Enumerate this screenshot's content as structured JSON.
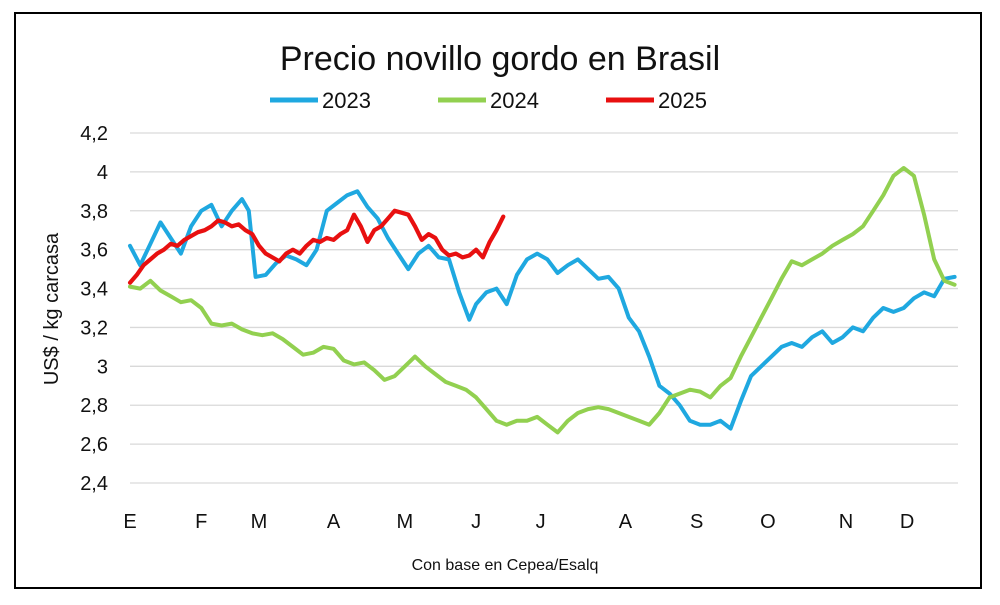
{
  "chart_data": {
    "type": "line",
    "title": "Precio novillo gordo en Brasil",
    "ylabel": "US$ / kg carcasa",
    "footnote": "Con base en Cepea/Esalq",
    "ylim": [
      2.4,
      4.2
    ],
    "yticks": [
      {
        "value": 2.4,
        "label": "2,4"
      },
      {
        "value": 2.6,
        "label": "2,6"
      },
      {
        "value": 2.8,
        "label": "2,8"
      },
      {
        "value": 3.0,
        "label": "3"
      },
      {
        "value": 3.2,
        "label": "3,2"
      },
      {
        "value": 3.4,
        "label": "3,4"
      },
      {
        "value": 3.6,
        "label": "3,6"
      },
      {
        "value": 3.8,
        "label": "3,8"
      },
      {
        "value": 4.0,
        "label": "4"
      },
      {
        "value": 4.2,
        "label": "4,2"
      }
    ],
    "xrange": [
      0,
      12.2
    ],
    "xticks": [
      {
        "pos": 0.0,
        "label": "E"
      },
      {
        "pos": 1.05,
        "label": "F"
      },
      {
        "pos": 1.9,
        "label": "M"
      },
      {
        "pos": 3.0,
        "label": "A"
      },
      {
        "pos": 4.05,
        "label": "M"
      },
      {
        "pos": 5.1,
        "label": "J"
      },
      {
        "pos": 6.05,
        "label": "J"
      },
      {
        "pos": 7.3,
        "label": "A"
      },
      {
        "pos": 8.35,
        "label": "S"
      },
      {
        "pos": 9.4,
        "label": "O"
      },
      {
        "pos": 10.55,
        "label": "N"
      },
      {
        "pos": 11.45,
        "label": "D"
      }
    ],
    "grid": true,
    "legend": "top",
    "series": [
      {
        "name": "2023",
        "color": "#1fa8e0",
        "x": [
          0.0,
          0.15,
          0.3,
          0.45,
          0.6,
          0.75,
          0.9,
          1.05,
          1.2,
          1.35,
          1.5,
          1.65,
          1.75,
          1.85,
          2.0,
          2.15,
          2.3,
          2.45,
          2.6,
          2.75,
          2.9,
          3.05,
          3.2,
          3.35,
          3.5,
          3.65,
          3.8,
          3.95,
          4.1,
          4.25,
          4.4,
          4.55,
          4.7,
          4.85,
          5.0,
          5.1,
          5.25,
          5.4,
          5.55,
          5.7,
          5.85,
          6.0,
          6.15,
          6.3,
          6.45,
          6.6,
          6.75,
          6.9,
          7.05,
          7.2,
          7.35,
          7.5,
          7.65,
          7.8,
          7.95,
          8.1,
          8.25,
          8.4,
          8.55,
          8.7,
          8.85,
          9.0,
          9.15,
          9.3,
          9.45,
          9.6,
          9.75,
          9.9,
          10.05,
          10.2,
          10.35,
          10.5,
          10.65,
          10.8,
          10.95,
          11.1,
          11.25,
          11.4,
          11.55,
          11.7,
          11.85,
          12.0,
          12.15
        ],
        "values": [
          3.62,
          3.52,
          3.63,
          3.74,
          3.66,
          3.58,
          3.72,
          3.8,
          3.83,
          3.72,
          3.8,
          3.86,
          3.8,
          3.46,
          3.47,
          3.53,
          3.57,
          3.55,
          3.52,
          3.6,
          3.8,
          3.84,
          3.88,
          3.9,
          3.82,
          3.76,
          3.66,
          3.58,
          3.5,
          3.58,
          3.62,
          3.56,
          3.55,
          3.38,
          3.24,
          3.32,
          3.38,
          3.4,
          3.32,
          3.47,
          3.55,
          3.58,
          3.55,
          3.48,
          3.52,
          3.55,
          3.5,
          3.45,
          3.46,
          3.4,
          3.25,
          3.18,
          3.05,
          2.9,
          2.86,
          2.8,
          2.72,
          2.7,
          2.7,
          2.72,
          2.68,
          2.82,
          2.95,
          3.0,
          3.05,
          3.1,
          3.12,
          3.1,
          3.15,
          3.18,
          3.12,
          3.15,
          3.2,
          3.18,
          3.25,
          3.3,
          3.28,
          3.3,
          3.35,
          3.38,
          3.36,
          3.45,
          3.46
        ]
      },
      {
        "name": "2024",
        "color": "#92d050",
        "x": [
          0.0,
          0.15,
          0.3,
          0.45,
          0.6,
          0.75,
          0.9,
          1.05,
          1.2,
          1.35,
          1.5,
          1.65,
          1.8,
          1.95,
          2.1,
          2.25,
          2.4,
          2.55,
          2.7,
          2.85,
          3.0,
          3.15,
          3.3,
          3.45,
          3.6,
          3.75,
          3.9,
          4.05,
          4.2,
          4.35,
          4.5,
          4.65,
          4.8,
          4.95,
          5.1,
          5.25,
          5.4,
          5.55,
          5.7,
          5.85,
          6.0,
          6.15,
          6.3,
          6.45,
          6.6,
          6.75,
          6.9,
          7.05,
          7.2,
          7.35,
          7.5,
          7.65,
          7.8,
          7.95,
          8.1,
          8.25,
          8.4,
          8.55,
          8.7,
          8.85,
          9.0,
          9.15,
          9.3,
          9.45,
          9.6,
          9.75,
          9.9,
          10.05,
          10.2,
          10.35,
          10.5,
          10.65,
          10.8,
          10.95,
          11.1,
          11.25,
          11.4,
          11.55,
          11.7,
          11.85,
          12.0,
          12.15
        ],
        "values": [
          3.41,
          3.4,
          3.44,
          3.39,
          3.36,
          3.33,
          3.34,
          3.3,
          3.22,
          3.21,
          3.22,
          3.19,
          3.17,
          3.16,
          3.17,
          3.14,
          3.1,
          3.06,
          3.07,
          3.1,
          3.09,
          3.03,
          3.01,
          3.02,
          2.98,
          2.93,
          2.95,
          3.0,
          3.05,
          3.0,
          2.96,
          2.92,
          2.9,
          2.88,
          2.84,
          2.78,
          2.72,
          2.7,
          2.72,
          2.72,
          2.74,
          2.7,
          2.66,
          2.72,
          2.76,
          2.78,
          2.79,
          2.78,
          2.76,
          2.74,
          2.72,
          2.7,
          2.76,
          2.84,
          2.86,
          2.88,
          2.87,
          2.84,
          2.9,
          2.94,
          3.05,
          3.15,
          3.25,
          3.35,
          3.45,
          3.54,
          3.52,
          3.55,
          3.58,
          3.62,
          3.65,
          3.68,
          3.72,
          3.8,
          3.88,
          3.98,
          4.02,
          3.98,
          3.78,
          3.55,
          3.44,
          3.42
        ]
      },
      {
        "name": "2025",
        "color": "#e81010",
        "x": [
          0.0,
          0.1,
          0.2,
          0.3,
          0.4,
          0.5,
          0.6,
          0.7,
          0.8,
          0.9,
          1.0,
          1.1,
          1.2,
          1.3,
          1.4,
          1.5,
          1.6,
          1.7,
          1.8,
          1.9,
          2.0,
          2.1,
          2.2,
          2.3,
          2.4,
          2.5,
          2.6,
          2.7,
          2.8,
          2.9,
          3.0,
          3.1,
          3.2,
          3.3,
          3.4,
          3.5,
          3.6,
          3.7,
          3.8,
          3.9,
          4.0,
          4.1,
          4.2,
          4.3,
          4.4,
          4.5,
          4.6,
          4.7,
          4.8,
          4.9,
          5.0,
          5.1,
          5.2,
          5.3,
          5.4,
          5.5
        ],
        "values": [
          3.43,
          3.47,
          3.52,
          3.55,
          3.58,
          3.6,
          3.63,
          3.62,
          3.65,
          3.67,
          3.69,
          3.7,
          3.72,
          3.75,
          3.74,
          3.72,
          3.73,
          3.7,
          3.68,
          3.62,
          3.58,
          3.56,
          3.54,
          3.58,
          3.6,
          3.58,
          3.62,
          3.65,
          3.64,
          3.66,
          3.65,
          3.68,
          3.7,
          3.78,
          3.72,
          3.64,
          3.7,
          3.72,
          3.76,
          3.8,
          3.79,
          3.78,
          3.72,
          3.65,
          3.68,
          3.66,
          3.6,
          3.57,
          3.58,
          3.56,
          3.57,
          3.6,
          3.56,
          3.64,
          3.7,
          3.77
        ]
      }
    ]
  }
}
